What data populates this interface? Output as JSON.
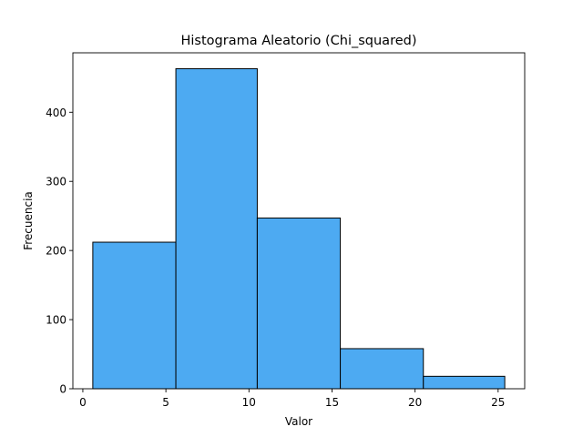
{
  "chart_data": {
    "type": "bar",
    "title": "Histograma Aleatorio (Chi_squared)",
    "xlabel": "Valor",
    "ylabel": "Frecuencia",
    "bins": [
      {
        "start": 0.6,
        "end": 5.6,
        "count": 212
      },
      {
        "start": 5.6,
        "end": 10.5,
        "count": 463
      },
      {
        "start": 10.5,
        "end": 15.5,
        "count": 247
      },
      {
        "start": 15.5,
        "end": 20.5,
        "count": 58
      },
      {
        "start": 20.5,
        "end": 25.4,
        "count": 18
      }
    ],
    "xlim": [
      -0.6,
      26.6
    ],
    "ylim": [
      0,
      486
    ],
    "xticks": [
      0,
      5,
      10,
      15,
      20,
      25
    ],
    "yticks": [
      0,
      100,
      200,
      300,
      400
    ],
    "bar_color": "#4daaf2",
    "edge_color": "#000000",
    "grid": false
  }
}
